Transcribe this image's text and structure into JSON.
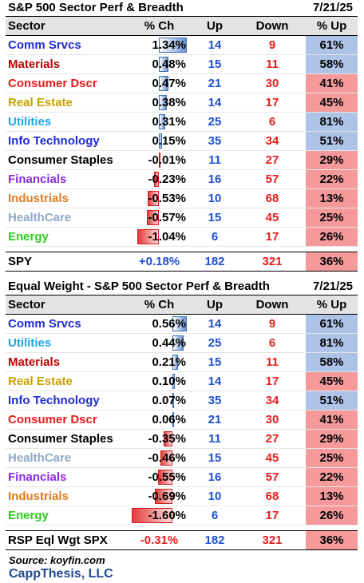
{
  "colors": {
    "up_high": "#aec3e8",
    "up_low": "#f5999b",
    "pos_bar": "#6b93cf",
    "neg_bar": "#e43a3a",
    "up_text": "#1f4fd6",
    "down_text": "#e61c1c"
  },
  "table1": {
    "title": "S&P 500 Sector Perf & Breadth",
    "date": "7/21/25",
    "headers": {
      "sector": "Sector",
      "pct": "% Ch",
      "up": "Up",
      "down": "Down",
      "pct_up": "% Up"
    },
    "rows": [
      {
        "sector": "Comm Srvcs",
        "color": "#1f2bd6",
        "pct": "1.34%",
        "pct_value": 1.34,
        "up": "14",
        "down": "9",
        "pct_up": "61%",
        "high": true
      },
      {
        "sector": "Materials",
        "color": "#c00000",
        "pct": "0.48%",
        "pct_value": 0.48,
        "up": "15",
        "down": "11",
        "pct_up": "58%",
        "high": true
      },
      {
        "sector": "Consumer Dscr",
        "color": "#e61c1c",
        "pct": "0.47%",
        "pct_value": 0.47,
        "up": "21",
        "down": "30",
        "pct_up": "41%",
        "high": false
      },
      {
        "sector": "Real Estate",
        "color": "#c9a100",
        "pct": "0.38%",
        "pct_value": 0.38,
        "up": "14",
        "down": "17",
        "pct_up": "45%",
        "high": false
      },
      {
        "sector": "Utilities",
        "color": "#1aa7e6",
        "pct": "0.31%",
        "pct_value": 0.31,
        "up": "25",
        "down": "6",
        "pct_up": "81%",
        "high": true
      },
      {
        "sector": "Info Technology",
        "color": "#1f2bd6",
        "pct": "0.15%",
        "pct_value": 0.15,
        "up": "35",
        "down": "34",
        "pct_up": "51%",
        "high": true
      },
      {
        "sector": "Consumer Staples",
        "color": "#000000",
        "pct": "-0.01%",
        "pct_value": -0.01,
        "up": "11",
        "down": "27",
        "pct_up": "29%",
        "high": false
      },
      {
        "sector": "Financials",
        "color": "#8a2be2",
        "pct": "-0.23%",
        "pct_value": -0.23,
        "up": "16",
        "down": "57",
        "pct_up": "22%",
        "high": false
      },
      {
        "sector": "Industrials",
        "color": "#e07a1f",
        "pct": "-0.53%",
        "pct_value": -0.53,
        "up": "10",
        "down": "68",
        "pct_up": "13%",
        "high": false
      },
      {
        "sector": "HealthCare",
        "color": "#8fa8c8",
        "pct": "-0.57%",
        "pct_value": -0.57,
        "up": "15",
        "down": "45",
        "pct_up": "25%",
        "high": false
      },
      {
        "sector": "Energy",
        "color": "#2ecc1f",
        "pct": "-1.04%",
        "pct_value": -1.04,
        "up": "6",
        "down": "17",
        "pct_up": "26%",
        "high": false
      }
    ],
    "total": {
      "label": "SPY",
      "pct": "+0.18%",
      "up": "182",
      "down": "321",
      "pct_up": "36%",
      "negative": false
    }
  },
  "table2": {
    "title": "Equal Weight - S&P 500 Sector Perf & Breadth",
    "date": "7/21/25",
    "headers": {
      "sector": "Sector",
      "pct": "% Ch",
      "up": "Up",
      "down": "Down",
      "pct_up": "% Up"
    },
    "rows": [
      {
        "sector": "Comm Srvcs",
        "color": "#1f2bd6",
        "pct": "0.56%",
        "pct_value": 0.56,
        "up": "14",
        "down": "9",
        "pct_up": "61%",
        "high": true
      },
      {
        "sector": "Utilities",
        "color": "#1aa7e6",
        "pct": "0.44%",
        "pct_value": 0.44,
        "up": "25",
        "down": "6",
        "pct_up": "81%",
        "high": true
      },
      {
        "sector": "Materials",
        "color": "#c00000",
        "pct": "0.21%",
        "pct_value": 0.21,
        "up": "15",
        "down": "11",
        "pct_up": "58%",
        "high": true
      },
      {
        "sector": "Real Estate",
        "color": "#c9a100",
        "pct": "0.10%",
        "pct_value": 0.1,
        "up": "14",
        "down": "17",
        "pct_up": "45%",
        "high": false
      },
      {
        "sector": "Info Technology",
        "color": "#1f2bd6",
        "pct": "0.07%",
        "pct_value": 0.07,
        "up": "35",
        "down": "34",
        "pct_up": "51%",
        "high": true
      },
      {
        "sector": "Consumer Dscr",
        "color": "#e61c1c",
        "pct": "0.06%",
        "pct_value": 0.06,
        "up": "21",
        "down": "30",
        "pct_up": "41%",
        "high": false
      },
      {
        "sector": "Consumer Staples",
        "color": "#000000",
        "pct": "-0.35%",
        "pct_value": -0.35,
        "up": "11",
        "down": "27",
        "pct_up": "29%",
        "high": false
      },
      {
        "sector": "HealthCare",
        "color": "#8fa8c8",
        "pct": "-0.46%",
        "pct_value": -0.46,
        "up": "15",
        "down": "45",
        "pct_up": "25%",
        "high": false
      },
      {
        "sector": "Financials",
        "color": "#8a2be2",
        "pct": "-0.55%",
        "pct_value": -0.55,
        "up": "16",
        "down": "57",
        "pct_up": "22%",
        "high": false
      },
      {
        "sector": "Industrials",
        "color": "#e07a1f",
        "pct": "-0.69%",
        "pct_value": -0.69,
        "up": "10",
        "down": "68",
        "pct_up": "13%",
        "high": false
      },
      {
        "sector": "Energy",
        "color": "#2ecc1f",
        "pct": "-1.60%",
        "pct_value": -1.6,
        "up": "6",
        "down": "17",
        "pct_up": "26%",
        "high": false
      }
    ],
    "total": {
      "label": "RSP Eql Wgt SPX",
      "pct": "-0.31%",
      "up": "182",
      "down": "321",
      "pct_up": "36%",
      "negative": true
    }
  },
  "footer": {
    "source": "Source: koyfin.com",
    "brand": "CappThesis, LLC"
  }
}
